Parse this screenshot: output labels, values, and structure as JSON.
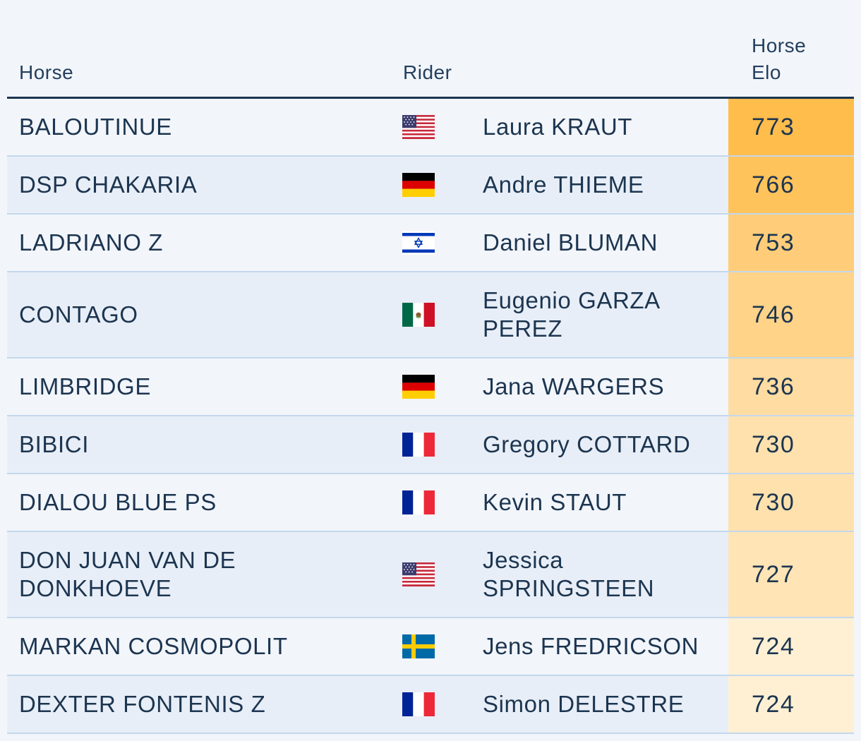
{
  "columns": {
    "horse": "Horse",
    "rider": "Rider",
    "elo_line1": "Horse",
    "elo_line2": "Elo"
  },
  "rows": [
    {
      "horse": "BALOUTINUE",
      "flag": "usa-flag-icon",
      "rider": "Laura KRAUT",
      "elo": "773",
      "elo_color": "#ffbd4c"
    },
    {
      "horse": "DSP CHAKARIA",
      "flag": "germany-flag-icon",
      "rider": "Andre THIEME",
      "elo": "766",
      "elo_color": "#ffc35c"
    },
    {
      "horse": "LADRIANO Z",
      "flag": "israel-flag-icon",
      "rider": "Daniel BLUMAN",
      "elo": "753",
      "elo_color": "#ffcd79"
    },
    {
      "horse": "CONTAGO",
      "flag": "mexico-flag-icon",
      "rider": "Eugenio GARZA PEREZ",
      "elo": "746",
      "elo_color": "#ffd388"
    },
    {
      "horse": "LIMBRIDGE",
      "flag": "germany-flag-icon",
      "rider": "Jana WARGERS",
      "elo": "736",
      "elo_color": "#ffdca1"
    },
    {
      "horse": "BIBICI",
      "flag": "france-flag-icon",
      "rider": "Gregory COTTARD",
      "elo": "730",
      "elo_color": "#ffe1ae"
    },
    {
      "horse": "DIALOU BLUE PS",
      "flag": "france-flag-icon",
      "rider": "Kevin STAUT",
      "elo": "730",
      "elo_color": "#ffe1ae"
    },
    {
      "horse": "DON JUAN VAN DE DONKHOEVE",
      "flag": "usa-flag-icon",
      "rider": "Jessica SPRINGSTEEN",
      "elo": "727",
      "elo_color": "#ffe4b6"
    },
    {
      "horse": "MARKAN COSMOPOLIT",
      "flag": "sweden-flag-icon",
      "rider": "Jens FREDRICSON",
      "elo": "724",
      "elo_color": "#fff0d4"
    },
    {
      "horse": "DEXTER FONTENIS Z",
      "flag": "france-flag-icon",
      "rider": "Simon DELESTRE",
      "elo": "724",
      "elo_color": "#fff0d4"
    }
  ]
}
